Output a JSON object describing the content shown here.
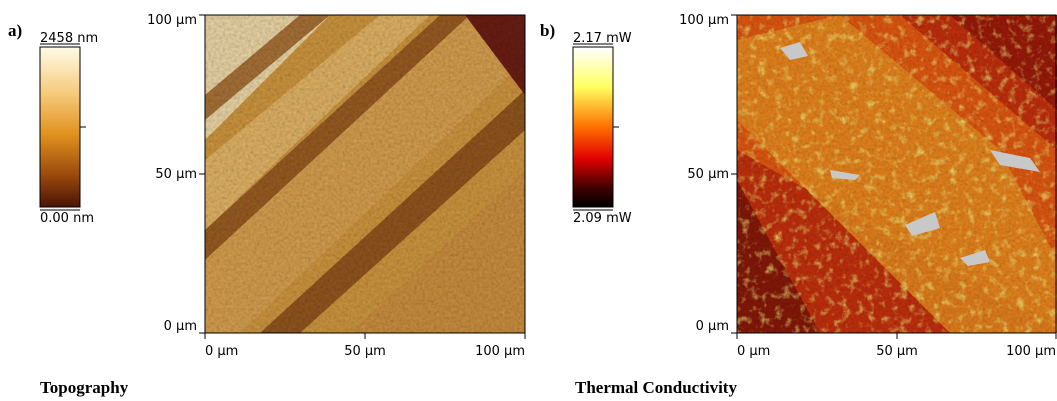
{
  "panels": [
    {
      "label": "a)",
      "colorbar": {
        "max": "2458 nm",
        "min": "0.00 nm"
      },
      "yticks": [
        "100 µm",
        "50 µm",
        "0 µm"
      ],
      "xticks": [
        "0 µm",
        "50 µm",
        "100 µm"
      ],
      "caption": "Topography"
    },
    {
      "label": "b)",
      "colorbar": {
        "max": "2.17 mW",
        "min": "2.09 mW"
      },
      "yticks": [
        "100 µm",
        "50 µm",
        "0 µm"
      ],
      "xticks": [
        "0 µm",
        "50 µm",
        "100 µm"
      ],
      "caption": "Thermal Conductivity"
    }
  ]
}
